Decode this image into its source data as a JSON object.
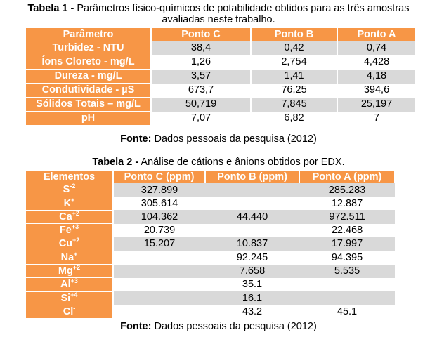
{
  "table1": {
    "caption_bold": "Tabela 1 -",
    "caption_line1": " Parâmetros físico-químicos de potabilidade obtidos para as três amostras",
    "caption_line2": "avaliadas neste trabalho.",
    "headers": [
      "Parâmetro",
      "Ponto C",
      "Ponto B",
      "Ponto A"
    ],
    "rows": [
      {
        "label": "Turbidez - NTU",
        "values": [
          "38,4",
          "0,42",
          "0,74"
        ]
      },
      {
        "label": "Íons Cloreto - mg/L",
        "values": [
          "1,26",
          "2,754",
          "4,428"
        ]
      },
      {
        "label": "Dureza - mg/L",
        "values": [
          "3,57",
          "1,41",
          "4,18"
        ]
      },
      {
        "label": "Condutividade - µS",
        "values": [
          "673,7",
          "76,25",
          "394,6"
        ]
      },
      {
        "label": "Sólidos Totais – mg/L",
        "values": [
          "50,719",
          "7,845",
          "25,197"
        ]
      },
      {
        "label": "pH",
        "values": [
          "7,07",
          "6,82",
          "7"
        ]
      }
    ],
    "source_bold": "Fonte:",
    "source_text": " Dados pessoais da pesquisa (2012)"
  },
  "table2": {
    "caption_bold": "Tabela 2 -",
    "caption_text": " Análise de cátions e ânions obtidos por EDX.",
    "headers": [
      "Elementos",
      "Ponto C (ppm)",
      "Ponto B (ppm)",
      "Ponto A (ppm)"
    ],
    "rows": [
      {
        "element": "S",
        "charge": "-2",
        "values": [
          "327.899",
          "",
          "285.283"
        ]
      },
      {
        "element": "K",
        "charge": "+",
        "values": [
          "305.614",
          "",
          "12.887"
        ]
      },
      {
        "element": "Ca",
        "charge": "+2",
        "values": [
          "104.362",
          "44.440",
          "972.511"
        ]
      },
      {
        "element": "Fe",
        "charge": "+3",
        "values": [
          "20.739",
          "",
          "22.468"
        ]
      },
      {
        "element": "Cu",
        "charge": "+2",
        "values": [
          "15.207",
          "10.837",
          "17.997"
        ]
      },
      {
        "element": "Na",
        "charge": "+",
        "values": [
          "",
          "92.245",
          "94.395"
        ]
      },
      {
        "element": "Mg",
        "charge": "+2",
        "values": [
          "",
          "7.658",
          "5.535"
        ]
      },
      {
        "element": "Al",
        "charge": "+3",
        "values": [
          "",
          "35.1",
          ""
        ]
      },
      {
        "element": "Si",
        "charge": "+4",
        "values": [
          "",
          "16.1",
          ""
        ]
      },
      {
        "element": "Cl",
        "charge": "-",
        "values": [
          "",
          "43.2",
          "45.1"
        ]
      }
    ],
    "source_bold": "Fonte:",
    "source_text": " Dados pessoais da pesquisa (2012)"
  },
  "colors": {
    "header_orange": "#f79646",
    "row_gray": "#d9d9d9",
    "row_white": "#ffffff"
  }
}
